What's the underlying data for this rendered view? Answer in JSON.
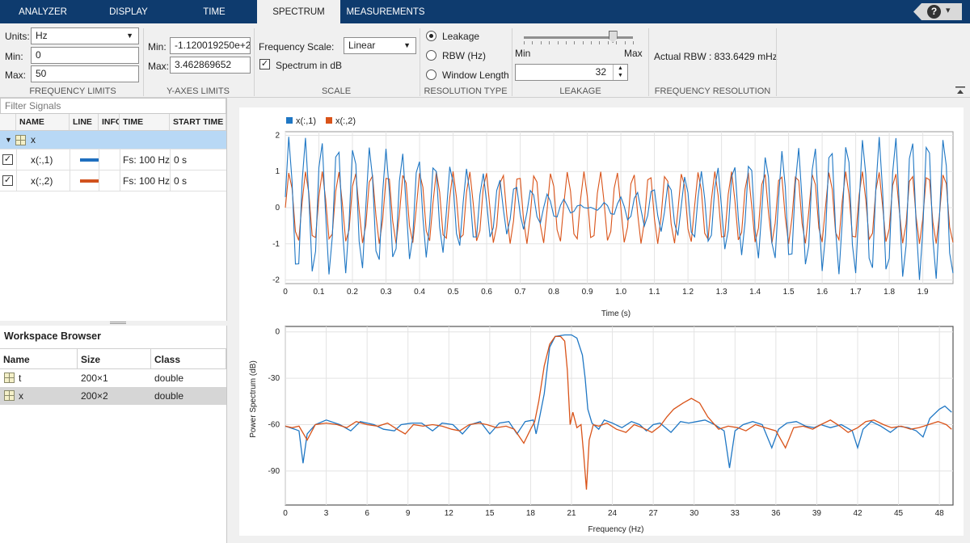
{
  "tabs": [
    {
      "label": "ANALYZER",
      "active": false
    },
    {
      "label": "DISPLAY",
      "active": false
    },
    {
      "label": "TIME",
      "active": false
    },
    {
      "label": "SPECTRUM",
      "active": true
    },
    {
      "label": "MEASUREMENTS",
      "active": false
    }
  ],
  "help": {
    "symbol": "?",
    "caret": "▾"
  },
  "freq_limits": {
    "units_label": "Units:",
    "units_value": "Hz",
    "min_label": "Min:",
    "min_value": "0",
    "max_label": "Max:",
    "max_value": "50",
    "group_label": "FREQUENCY LIMITS"
  },
  "y_limits": {
    "min_label": "Min:",
    "min_value": "-1.120019250e+2",
    "max_label": "Max:",
    "max_value": "3.462869652",
    "group_label": "Y-AXES LIMITS"
  },
  "scale": {
    "freq_scale_label": "Frequency Scale:",
    "freq_scale_value": "Linear",
    "spectrum_db_label": "Spectrum in dB",
    "spectrum_db_checked": true,
    "group_label": "SCALE"
  },
  "resolution_type": {
    "options": [
      "Leakage",
      "RBW (Hz)",
      "Window Length"
    ],
    "selected": "Leakage",
    "group_label": "RESOLUTION TYPE"
  },
  "leakage": {
    "min_label": "Min",
    "max_label": "Max",
    "value": "32",
    "slider_fraction": 0.82,
    "group_label": "LEAKAGE"
  },
  "freq_resolution": {
    "rbw_text": "Actual RBW : 833.6429 mHz",
    "group_label": "FREQUENCY RESOLUTION"
  },
  "signals": {
    "filter_placeholder": "Filter Signals",
    "columns": [
      "NAME",
      "LINE",
      "INFO",
      "TIME",
      "START TIME"
    ],
    "parent": {
      "name": "x"
    },
    "rows": [
      {
        "name": "x(:,1)",
        "line_color": "#1f6fbf",
        "time": "Fs: 100 Hz",
        "start": "0 s",
        "checked": true
      },
      {
        "name": "x(:,2)",
        "line_color": "#d1521e",
        "time": "Fs: 100 Hz",
        "start": "0 s",
        "checked": true
      }
    ]
  },
  "workspace": {
    "title": "Workspace Browser",
    "columns": [
      "Name",
      "Size",
      "Class"
    ],
    "rows": [
      {
        "name": "t",
        "size": "200×1",
        "class": "double"
      },
      {
        "name": "x",
        "size": "200×2",
        "class": "double"
      }
    ]
  },
  "colors": {
    "series1": "#1f77c4",
    "series2": "#d95319",
    "tabbar": "#0e3b6e"
  },
  "chart_data": [
    {
      "type": "line",
      "title": "",
      "xlabel": "Time (s)",
      "ylabel": "",
      "xlim": [
        0,
        1.99
      ],
      "ylim": [
        -2.1,
        2.1
      ],
      "x_ticks": [
        "0",
        "0.1",
        "0.2",
        "0.3",
        "0.4",
        "0.5",
        "0.6",
        "0.7",
        "0.8",
        "0.9",
        "1.0",
        "1.1",
        "1.2",
        "1.3",
        "1.4",
        "1.5",
        "1.6",
        "1.7",
        "1.8",
        "1.9"
      ],
      "y_ticks": [
        "2",
        "1",
        "0",
        "-1",
        "-2"
      ],
      "grid": true,
      "legend_placement": "top-left",
      "series": [
        {
          "name": "x(:,1)",
          "samples": 200,
          "sample_rate_hz": 100,
          "y_range": [
            -2,
            2
          ]
        },
        {
          "name": "x(:,2)",
          "samples": 200,
          "sample_rate_hz": 100,
          "y_range": [
            -1,
            1
          ]
        }
      ]
    },
    {
      "type": "line",
      "title": "",
      "xlabel": "Frequency (Hz)",
      "ylabel": "Power Spectrum (dB)",
      "xlim": [
        0,
        49
      ],
      "ylim": [
        -112,
        3.5
      ],
      "x_ticks": [
        "0",
        "3",
        "6",
        "9",
        "12",
        "15",
        "18",
        "21",
        "24",
        "27",
        "30",
        "33",
        "36",
        "39",
        "42",
        "45",
        "48"
      ],
      "y_ticks": [
        "0",
        "-30",
        "-60",
        "-90"
      ],
      "grid": true,
      "series": [
        {
          "name": "x(:,1)",
          "points": [
            [
              0,
              -61
            ],
            [
              0.7,
              -63
            ],
            [
              1.0,
              -64
            ],
            [
              1.3,
              -85
            ],
            [
              1.6,
              -66
            ],
            [
              2.2,
              -60
            ],
            [
              3.0,
              -57
            ],
            [
              4.0,
              -60
            ],
            [
              4.8,
              -64
            ],
            [
              5.5,
              -58
            ],
            [
              6.5,
              -60
            ],
            [
              7.2,
              -63
            ],
            [
              8.0,
              -64
            ],
            [
              8.5,
              -60
            ],
            [
              9.3,
              -59
            ],
            [
              10.0,
              -59
            ],
            [
              10.8,
              -64
            ],
            [
              11.5,
              -59
            ],
            [
              12.3,
              -60
            ],
            [
              13.0,
              -66
            ],
            [
              13.6,
              -60
            ],
            [
              14.3,
              -58
            ],
            [
              15.0,
              -66
            ],
            [
              15.7,
              -59
            ],
            [
              16.4,
              -58
            ],
            [
              17.0,
              -66
            ],
            [
              17.6,
              -58
            ],
            [
              18.2,
              -57
            ],
            [
              18.4,
              -66
            ],
            [
              18.6,
              -58
            ],
            [
              19.0,
              -40
            ],
            [
              19.4,
              -10
            ],
            [
              19.8,
              -3
            ],
            [
              20.5,
              -2
            ],
            [
              21.0,
              -2
            ],
            [
              21.4,
              -4
            ],
            [
              21.8,
              -15
            ],
            [
              22.0,
              -30
            ],
            [
              22.2,
              -50
            ],
            [
              22.5,
              -59
            ],
            [
              23.0,
              -63
            ],
            [
              23.4,
              -57
            ],
            [
              24.0,
              -59
            ],
            [
              24.7,
              -62
            ],
            [
              25.4,
              -58
            ],
            [
              26.0,
              -60
            ],
            [
              26.5,
              -64
            ],
            [
              27.0,
              -60
            ],
            [
              27.5,
              -59
            ],
            [
              28.3,
              -65
            ],
            [
              29.0,
              -58
            ],
            [
              29.6,
              -59
            ],
            [
              30.2,
              -58
            ],
            [
              30.8,
              -57
            ],
            [
              31.5,
              -60
            ],
            [
              32.2,
              -64
            ],
            [
              32.6,
              -88
            ],
            [
              33.0,
              -64
            ],
            [
              33.6,
              -60
            ],
            [
              34.3,
              -58
            ],
            [
              35.0,
              -60
            ],
            [
              35.7,
              -75
            ],
            [
              36.2,
              -63
            ],
            [
              36.8,
              -59
            ],
            [
              37.5,
              -58
            ],
            [
              38.2,
              -61
            ],
            [
              38.8,
              -62
            ],
            [
              39.3,
              -60
            ],
            [
              40.0,
              -62
            ],
            [
              40.8,
              -60
            ],
            [
              41.6,
              -64
            ],
            [
              42.0,
              -75
            ],
            [
              42.4,
              -63
            ],
            [
              43.0,
              -58
            ],
            [
              43.7,
              -61
            ],
            [
              44.4,
              -65
            ],
            [
              45.0,
              -61
            ],
            [
              45.7,
              -62
            ],
            [
              46.3,
              -64
            ],
            [
              46.8,
              -68
            ],
            [
              47.3,
              -56
            ],
            [
              48.0,
              -50
            ],
            [
              48.4,
              -48
            ],
            [
              48.9,
              -52
            ]
          ]
        },
        {
          "name": "x(:,2)",
          "points": [
            [
              0,
              -61
            ],
            [
              0.5,
              -62
            ],
            [
              1.0,
              -61
            ],
            [
              1.6,
              -70
            ],
            [
              2.2,
              -60
            ],
            [
              3.0,
              -59
            ],
            [
              3.8,
              -60
            ],
            [
              4.5,
              -62
            ],
            [
              5.2,
              -58
            ],
            [
              6.0,
              -60
            ],
            [
              6.8,
              -61
            ],
            [
              7.5,
              -59
            ],
            [
              8.2,
              -63
            ],
            [
              8.8,
              -66
            ],
            [
              9.4,
              -60
            ],
            [
              10.1,
              -61
            ],
            [
              10.8,
              -60
            ],
            [
              11.5,
              -61
            ],
            [
              12.2,
              -63
            ],
            [
              12.8,
              -64
            ],
            [
              13.5,
              -60
            ],
            [
              14.2,
              -59
            ],
            [
              14.8,
              -60
            ],
            [
              15.5,
              -62
            ],
            [
              16.2,
              -61
            ],
            [
              16.8,
              -63
            ],
            [
              17.5,
              -72
            ],
            [
              18.0,
              -63
            ],
            [
              18.3,
              -58
            ],
            [
              18.6,
              -45
            ],
            [
              19.0,
              -22
            ],
            [
              19.4,
              -8
            ],
            [
              19.8,
              -3
            ],
            [
              20.2,
              -3
            ],
            [
              20.5,
              -6
            ],
            [
              20.7,
              -25
            ],
            [
              20.9,
              -60
            ],
            [
              21.1,
              -52
            ],
            [
              21.4,
              -62
            ],
            [
              21.7,
              -60
            ],
            [
              21.9,
              -80
            ],
            [
              22.1,
              -102
            ],
            [
              22.3,
              -70
            ],
            [
              22.6,
              -60
            ],
            [
              23.0,
              -61
            ],
            [
              23.6,
              -59
            ],
            [
              24.3,
              -63
            ],
            [
              25.0,
              -65
            ],
            [
              25.6,
              -60
            ],
            [
              26.2,
              -62
            ],
            [
              26.9,
              -65
            ],
            [
              27.5,
              -61
            ],
            [
              28.0,
              -55
            ],
            [
              28.5,
              -50
            ],
            [
              29.2,
              -46
            ],
            [
              29.8,
              -43
            ],
            [
              30.4,
              -46
            ],
            [
              31.0,
              -55
            ],
            [
              31.8,
              -63
            ],
            [
              32.5,
              -61
            ],
            [
              33.2,
              -62
            ],
            [
              33.8,
              -64
            ],
            [
              34.5,
              -60
            ],
            [
              35.2,
              -62
            ],
            [
              36.0,
              -64
            ],
            [
              36.7,
              -75
            ],
            [
              37.3,
              -62
            ],
            [
              38.0,
              -61
            ],
            [
              38.7,
              -63
            ],
            [
              39.3,
              -60
            ],
            [
              40.0,
              -57
            ],
            [
              40.7,
              -61
            ],
            [
              41.3,
              -65
            ],
            [
              42.0,
              -62
            ],
            [
              42.6,
              -58
            ],
            [
              43.2,
              -57
            ],
            [
              43.9,
              -60
            ],
            [
              44.5,
              -62
            ],
            [
              45.2,
              -61
            ],
            [
              45.9,
              -63
            ],
            [
              46.5,
              -62
            ],
            [
              47.2,
              -60
            ],
            [
              47.9,
              -58
            ],
            [
              48.5,
              -60
            ],
            [
              48.9,
              -63
            ]
          ]
        }
      ]
    }
  ]
}
